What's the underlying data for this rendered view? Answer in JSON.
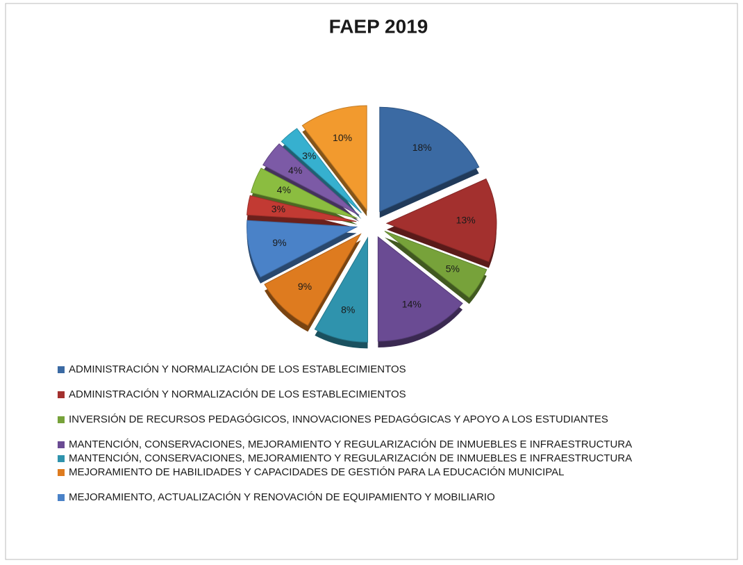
{
  "chart_data": {
    "type": "pie",
    "title": "FAEP 2019",
    "categories": [
      "ADMINISTRACIÓN Y NORMALIZACIÓN DE LOS ESTABLECIMIENTOS",
      "ADMINISTRACIÓN Y NORMALIZACIÓN DE LOS ESTABLECIMIENTOS",
      "INVERSIÓN DE RECURSOS PEDAGÓGICOS, INNOVACIONES PEDAGÓGICAS Y APOYO A LOS ESTUDIANTES",
      "MANTENCIÓN, CONSERVACIONES, MEJORAMIENTO Y REGULARIZACIÓN DE INMUEBLES E INFRAESTRUCTURA",
      "MANTENCIÓN, CONSERVACIONES, MEJORAMIENTO Y REGULARIZACIÓN DE INMUEBLES E INFRAESTRUCTURA",
      "MEJORAMIENTO DE HABILIDADES Y CAPACIDADES DE GESTIÓN PARA LA EDUCACIÓN MUNICIPAL",
      "MEJORAMIENTO, ACTUALIZACIÓN Y RENOVACIÓN DE EQUIPAMIENTO Y MOBILIARIO",
      null,
      null,
      null,
      null,
      null
    ],
    "values": [
      18,
      13,
      5,
      14,
      8,
      9,
      9,
      3,
      4,
      4,
      3,
      10
    ],
    "value_labels": [
      "18%",
      "13%",
      "5%",
      "14%",
      "8%",
      "9%",
      "9%",
      "3%",
      "4%",
      "4%",
      "3%",
      "10%"
    ],
    "colors": [
      "#3b6aa3",
      "#a3302e",
      "#77a23a",
      "#6a4b93",
      "#2f93ad",
      "#de7b1f",
      "#4a82c8",
      "#c23a33",
      "#8bbd40",
      "#7c5aa6",
      "#36b0cf",
      "#f29a2e"
    ]
  }
}
